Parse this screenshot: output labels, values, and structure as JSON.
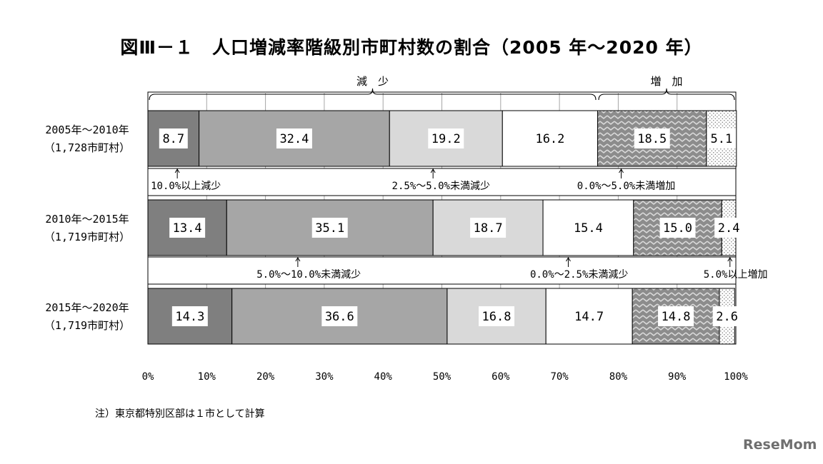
{
  "title": "図Ⅲ－１　人口増減率階級別市町村数の割合（2005 年～2020 年）",
  "note": "注）東京都特別区部は１市として計算",
  "watermark": "ReseMom",
  "brackets": {
    "decrease": "減　少",
    "increase": "増　加"
  },
  "chart_data": {
    "type": "bar",
    "orientation": "horizontal-stacked-100",
    "categories": [
      {
        "period": "2005年～2010年",
        "count": "（1,728市町村）"
      },
      {
        "period": "2010年～2015年",
        "count": "（1,719市町村）"
      },
      {
        "period": "2015年～2020年",
        "count": "（1,719市町村）"
      }
    ],
    "series": [
      {
        "name": "10.0%以上減少",
        "color": "#7f7f7f",
        "pattern": "solid",
        "values": [
          8.7,
          13.4,
          14.3
        ]
      },
      {
        "name": "5.0%～10.0%未満減少",
        "color": "#a6a6a6",
        "pattern": "solid",
        "values": [
          32.4,
          35.1,
          36.6
        ]
      },
      {
        "name": "2.5%～5.0%未満減少",
        "color": "#d9d9d9",
        "pattern": "solid",
        "values": [
          19.2,
          18.7,
          16.8
        ]
      },
      {
        "name": "0.0%～2.5%未満減少",
        "color": "#ffffff",
        "pattern": "solid",
        "values": [
          16.2,
          15.4,
          14.7
        ]
      },
      {
        "name": "0.0%～5.0%未満増加",
        "color": "#8c8c8c",
        "pattern": "zigzag",
        "values": [
          18.5,
          15.0,
          14.8
        ]
      },
      {
        "name": "5.0%以上増加",
        "color": "#ffffff",
        "pattern": "dots",
        "values": [
          5.1,
          2.4,
          2.6
        ]
      }
    ],
    "value_labels": [
      [
        "8.7",
        "32.4",
        "19.2",
        "16.2",
        "18.5",
        "5.1"
      ],
      [
        "13.4",
        "35.1",
        "18.7",
        "15.4",
        "15.0",
        "2.4"
      ],
      [
        "14.3",
        "36.6",
        "16.8",
        "14.7",
        "14.8",
        "2.6"
      ]
    ],
    "xlim": [
      0,
      100
    ],
    "xticks": [
      "0%",
      "10%",
      "20%",
      "30%",
      "40%",
      "50%",
      "60%",
      "70%",
      "80%",
      "90%",
      "100%"
    ],
    "grid": true,
    "annotations": [
      {
        "text": "10.0%以上減少",
        "arrow_at": 5,
        "gap": 0,
        "label_x": 0.5
      },
      {
        "text": "2.5%～5.0%未満減少",
        "arrow_at": 48.5,
        "gap": 0,
        "label_x": 41.5
      },
      {
        "text": "0.0%～5.0%未満増加",
        "arrow_at": 80.5,
        "gap": 0,
        "label_x": 73
      },
      {
        "text": "5.0%～10.0%未満減少",
        "arrow_at": 25.5,
        "gap": 1,
        "label_x": 18.5
      },
      {
        "text": "0.0%～2.5%未満減少",
        "arrow_at": 71.5,
        "gap": 1,
        "label_x": 65
      },
      {
        "text": "5.0%以上増加",
        "arrow_at": 99,
        "gap": 1,
        "label_x": 94.5
      }
    ]
  }
}
